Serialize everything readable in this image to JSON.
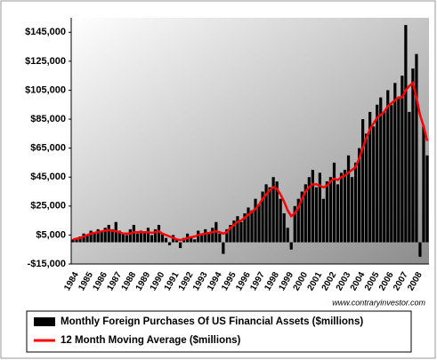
{
  "chart_data": {
    "type": "bar",
    "watermark": "www.contraryinvestor.com",
    "categories": [
      "1984",
      null,
      null,
      null,
      "1985",
      null,
      null,
      null,
      "1986",
      null,
      null,
      null,
      "1987",
      null,
      null,
      null,
      "1988",
      null,
      null,
      null,
      "1989",
      null,
      null,
      null,
      "1990",
      null,
      null,
      null,
      "1991",
      null,
      null,
      null,
      "1992",
      null,
      null,
      null,
      "1993",
      null,
      null,
      null,
      "1994",
      null,
      null,
      null,
      "1995",
      null,
      null,
      null,
      "1996",
      null,
      null,
      null,
      "1997",
      null,
      null,
      null,
      "1998",
      null,
      null,
      null,
      "1999",
      null,
      null,
      null,
      "2000",
      null,
      null,
      null,
      "2001",
      null,
      null,
      null,
      "2002",
      null,
      null,
      null,
      "2003",
      null,
      null,
      null,
      "2004",
      null,
      null,
      null,
      "2005",
      null,
      null,
      null,
      "2006",
      null,
      null,
      null,
      "2007",
      null,
      null,
      null,
      "2008",
      null,
      null,
      null
    ],
    "series": [
      {
        "name": "Monthly Foreign Purchases Of US Financial Assets ($millions)",
        "color": "#000000",
        "type": "bar",
        "values": [
          2000,
          3000,
          4000,
          6000,
          5000,
          8000,
          6000,
          9000,
          7000,
          10000,
          12000,
          9000,
          14000,
          8000,
          6000,
          5000,
          9000,
          12000,
          6000,
          8000,
          7000,
          10000,
          5000,
          9000,
          12000,
          6000,
          3000,
          -2000,
          5000,
          2000,
          -4000,
          3000,
          6000,
          4000,
          2000,
          8000,
          5000,
          9000,
          7000,
          10000,
          14000,
          6000,
          -8000,
          9000,
          12000,
          15000,
          18000,
          14000,
          20000,
          24000,
          22000,
          30000,
          26000,
          35000,
          40000,
          38000,
          45000,
          42000,
          30000,
          20000,
          10000,
          -5000,
          25000,
          30000,
          35000,
          40000,
          45000,
          50000,
          38000,
          48000,
          30000,
          42000,
          45000,
          55000,
          40000,
          48000,
          50000,
          60000,
          45000,
          55000,
          65000,
          85000,
          75000,
          90000,
          80000,
          95000,
          100000,
          90000,
          105000,
          95000,
          110000,
          100000,
          115000,
          150000,
          90000,
          120000,
          130000,
          -10000,
          80000,
          60000
        ]
      },
      {
        "name": "12 Month Moving Average ($millions)",
        "color": "#ff0000",
        "type": "line",
        "values": [
          2000,
          2500,
          3000,
          4000,
          5000,
          6000,
          6500,
          7000,
          7500,
          8000,
          8500,
          8000,
          7500,
          7000,
          6000,
          6000,
          6000,
          7000,
          7000,
          7000,
          7000,
          7000,
          6500,
          7000,
          7500,
          6000,
          5000,
          4000,
          3000,
          2000,
          1500,
          2000,
          3000,
          3500,
          4000,
          5000,
          5500,
          6000,
          6500,
          7000,
          7500,
          7000,
          6000,
          7000,
          10000,
          12000,
          14000,
          15000,
          17000,
          19000,
          21000,
          23000,
          26000,
          30000,
          33000,
          36000,
          38000,
          37000,
          33000,
          28000,
          22000,
          18000,
          20000,
          24000,
          30000,
          35000,
          38000,
          40000,
          40000,
          39000,
          38000,
          39000,
          42000,
          44000,
          43000,
          45000,
          46000,
          48000,
          50000,
          52000,
          58000,
          65000,
          72000,
          78000,
          82000,
          86000,
          88000,
          90000,
          94000,
          96000,
          98000,
          100000,
          100000,
          105000,
          108000,
          110000,
          100000,
          88000,
          80000,
          70000
        ]
      }
    ],
    "ylim": [
      -15000,
      155000
    ],
    "yticks": [
      {
        "value": -15000,
        "label": "-$15,000"
      },
      {
        "value": 5000,
        "label": "$5,000"
      },
      {
        "value": 25000,
        "label": "$25,000"
      },
      {
        "value": 45000,
        "label": "$45,000"
      },
      {
        "value": 65000,
        "label": "$65,000"
      },
      {
        "value": 85000,
        "label": "$85,000"
      },
      {
        "value": 105000,
        "label": "$105,000"
      },
      {
        "value": 125000,
        "label": "$125,000"
      },
      {
        "value": 145000,
        "label": "$145,000"
      }
    ]
  }
}
